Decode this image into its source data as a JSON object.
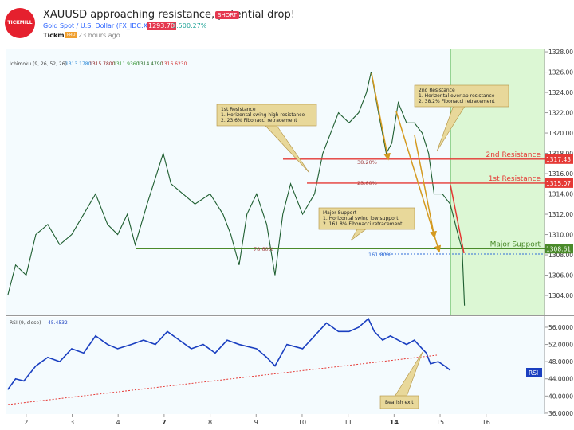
{
  "header": {
    "logo": "TICKMILL",
    "title": "XAUUSD approaching resistance, potential drop!",
    "badge": "SHORT",
    "symbol": "Gold Spot / U.S. Dollar (FX_IDC:XAUUSD)",
    "price": "1293.70",
    "change": "3.50",
    "change_pct": "0.27%",
    "author": "Tickmill",
    "author_badge": "PRO",
    "time": "23 hours ago"
  },
  "chart_data": [
    {
      "type": "line",
      "indicator": "Ichimoku (9, 26, 52, 26)",
      "indicator_values": [
        {
          "value": 1313.178,
          "label": "1313.1780",
          "color": "#2e8bd8"
        },
        {
          "value": 1315.78,
          "label": "1315.7800",
          "color": "#8b1a1a"
        },
        {
          "value": 1311.936,
          "label": "1311.9360",
          "color": "#3a9a3a"
        },
        {
          "value": 1314.479,
          "label": "1314.4790",
          "color": "#2a6e2a"
        },
        {
          "value": 1316.623,
          "label": "1316.6230",
          "color": "#d32f2f"
        }
      ],
      "x": [
        -0.4,
        -0.23,
        0,
        0.21,
        0.47,
        0.73,
        0.99,
        1.25,
        1.51,
        1.77,
        1.99,
        2.2,
        2.37,
        2.63,
        2.98,
        3.15,
        3.41,
        3.67,
        4.0,
        4.28,
        4.45,
        4.63,
        4.8,
        5.01,
        5.23,
        5.41,
        5.58,
        5.75,
        6.01,
        6.27,
        6.45,
        6.62,
        6.79,
        7.02,
        7.23,
        7.4,
        7.5,
        7.66,
        7.83,
        7.95,
        8.09,
        8.27,
        8.44,
        8.61,
        8.75,
        8.87,
        9.05,
        9.22,
        9.39,
        9.48,
        9.53
      ],
      "values": [
        1304,
        1307,
        1306,
        1310,
        1311,
        1309,
        1310,
        1312,
        1314,
        1311,
        1310,
        1312,
        1309,
        1313,
        1318,
        1315,
        1314,
        1313,
        1314,
        1312,
        1310,
        1307,
        1312,
        1314,
        1311,
        1306,
        1312,
        1315,
        1312,
        1314,
        1318,
        1320,
        1322,
        1321,
        1322,
        1324,
        1326,
        1322,
        1318,
        1319,
        1323,
        1321,
        1321,
        1320,
        1318,
        1314,
        1314,
        1313,
        1310,
        1308.5,
        1303
      ],
      "color": "#1e5e30",
      "xlim": [
        -0.43,
        11.27
      ],
      "ylim": [
        1302.12,
        1328.24
      ],
      "yticks": [
        {
          "value": 1304,
          "label": "1304.00"
        },
        {
          "value": 1306,
          "label": "1306.00"
        },
        {
          "value": 1308,
          "label": "1308.00"
        },
        {
          "value": 1310,
          "label": "1310.00"
        },
        {
          "value": 1312,
          "label": "1312.00"
        },
        {
          "value": 1314,
          "label": "1314.00"
        },
        {
          "value": 1316,
          "label": "1316.00"
        },
        {
          "value": 1318,
          "label": "1318.00"
        },
        {
          "value": 1320,
          "label": "1320.00"
        },
        {
          "value": 1322,
          "label": "1322.00"
        },
        {
          "value": 1324,
          "label": "1324.00"
        },
        {
          "value": 1326,
          "label": "1326.00"
        },
        {
          "value": 1328,
          "label": "1328.00"
        }
      ],
      "levels": [
        {
          "name": "2nd Resistance",
          "value": 1317.43,
          "color": "#e53935"
        },
        {
          "name": "1st Resistance",
          "value": 1315.07,
          "color": "#e53935"
        },
        {
          "name": "Major Support",
          "value": 1308.61,
          "color": "#4a8a2a"
        }
      ],
      "fib_labels": [
        "38.20%",
        "23.60%",
        "78.60%",
        "161.80%"
      ],
      "notes": [
        {
          "title": "1st Resistance",
          "lines": [
            "1. Horizontal swing high resistance",
            "2. 23.6% Fibonacci retracement"
          ]
        },
        {
          "title": "2nd Resistance",
          "lines": [
            "1. Horizontal overlap resistance",
            "2. 38.2% Fibonacci retracement"
          ]
        },
        {
          "title": "Major Support",
          "lines": [
            "1. Horizontal swing low support",
            "2. 161.8% Fibonacci retracement"
          ]
        }
      ]
    },
    {
      "type": "line",
      "title": "RSI (9, close)",
      "current": {
        "value": 45.4532,
        "label": "45.4532"
      },
      "tag": "RSI",
      "note": "Bearish exit",
      "x": [
        -0.4,
        -0.23,
        -0.05,
        0.21,
        0.47,
        0.73,
        0.99,
        1.25,
        1.51,
        1.77,
        1.99,
        2.29,
        2.55,
        2.81,
        3.07,
        3.33,
        3.59,
        3.85,
        4.11,
        4.37,
        4.63,
        5.01,
        5.23,
        5.41,
        5.67,
        6.01,
        6.27,
        6.53,
        6.79,
        7.02,
        7.23,
        7.44,
        7.57,
        7.75,
        7.92,
        8.09,
        8.27,
        8.44,
        8.61,
        8.7,
        8.79,
        8.96,
        9.1,
        9.22
      ],
      "values": [
        41.5,
        44,
        43.5,
        47,
        49,
        48,
        51,
        50,
        54,
        52,
        51,
        52,
        53,
        52,
        55,
        53,
        51,
        52,
        50,
        53,
        52,
        51,
        49,
        47,
        52,
        51,
        54,
        57,
        55,
        55,
        56,
        58,
        55,
        53,
        54,
        53,
        52,
        53,
        51,
        50,
        47.5,
        48,
        47,
        46
      ],
      "color": "#1a3fc0",
      "xlim": [
        -0.43,
        11.27
      ],
      "ylim": [
        35.8,
        58.4
      ],
      "yticks": [
        {
          "value": 36,
          "label": "36.0000"
        },
        {
          "value": 40,
          "label": "40.0000"
        },
        {
          "value": 44,
          "label": "44.0000"
        },
        {
          "value": 48,
          "label": "48.0000"
        },
        {
          "value": 52,
          "label": "52.0000"
        },
        {
          "value": 56,
          "label": "56.0000"
        }
      ],
      "xticks": [
        {
          "value": 0,
          "label": "2"
        },
        {
          "value": 1,
          "label": "3"
        },
        {
          "value": 2,
          "label": "4"
        },
        {
          "value": 3,
          "label": "7"
        },
        {
          "value": 4,
          "label": "8"
        },
        {
          "value": 5,
          "label": "9"
        },
        {
          "value": 6,
          "label": "10"
        },
        {
          "value": 7,
          "label": "11"
        },
        {
          "value": 8,
          "label": "14"
        },
        {
          "value": 9,
          "label": "15"
        },
        {
          "value": 10,
          "label": "16"
        }
      ]
    }
  ]
}
